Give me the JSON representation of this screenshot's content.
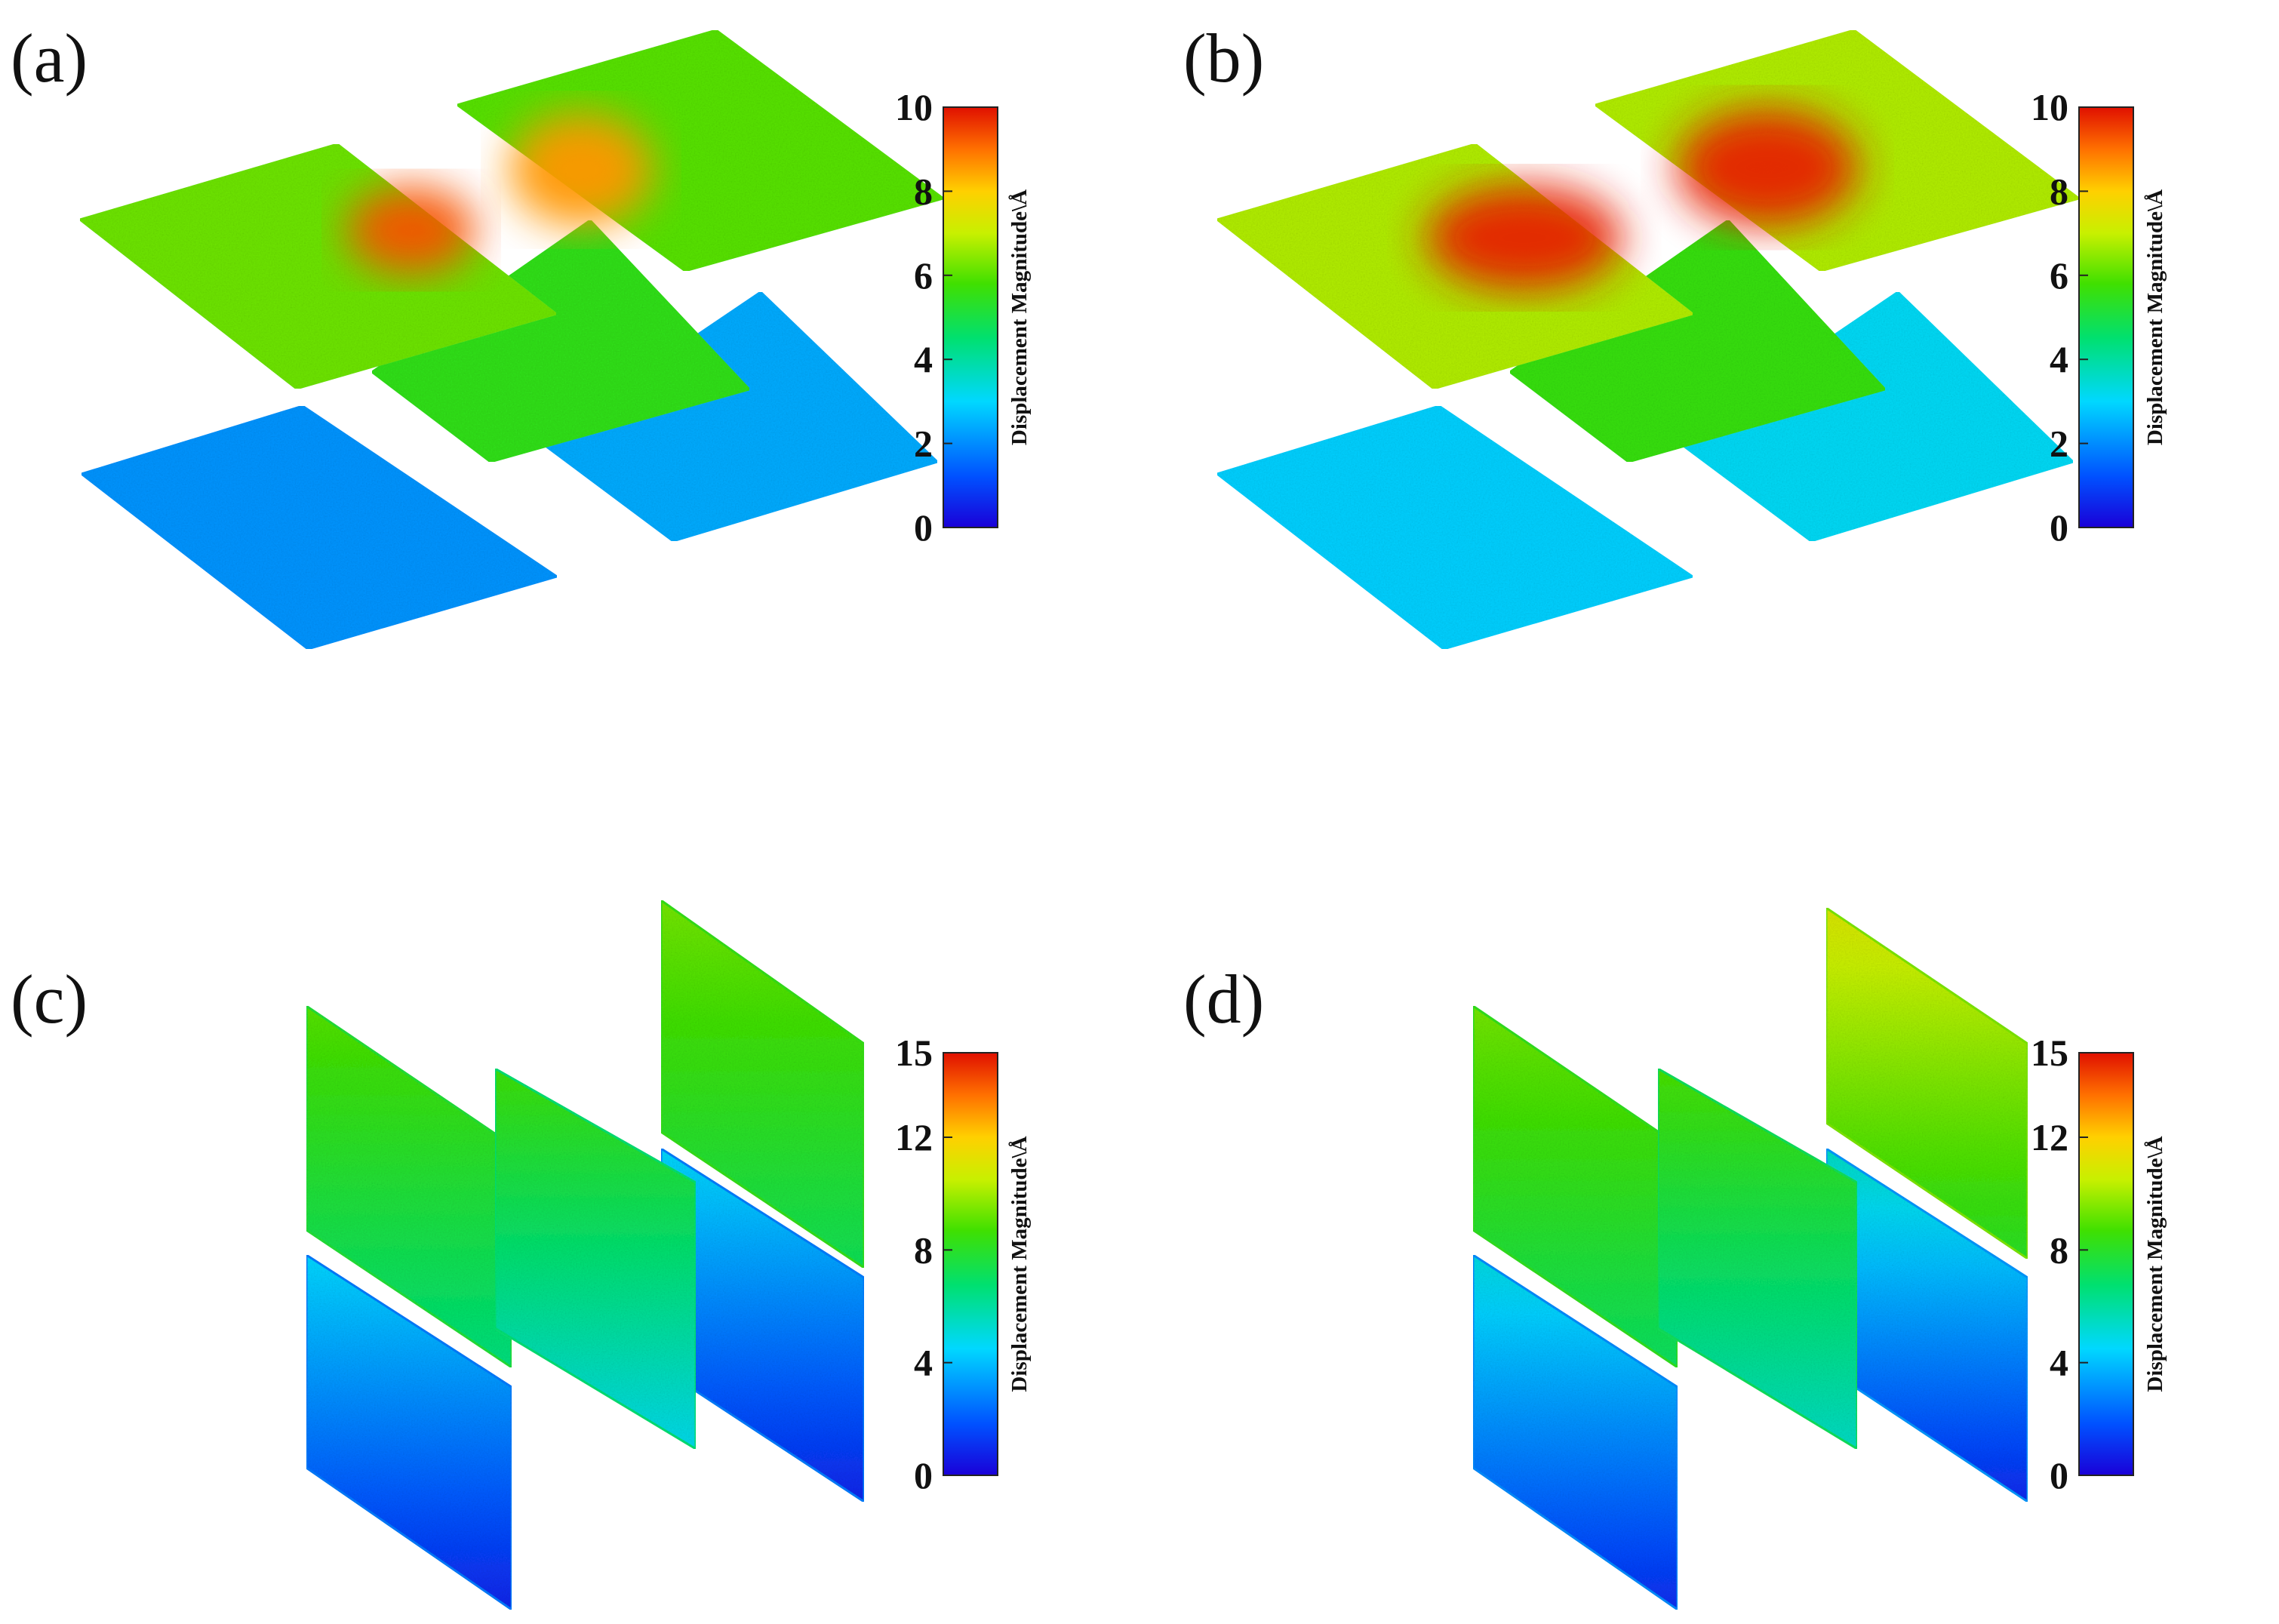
{
  "figure": {
    "panels": [
      {
        "id": "a",
        "label": "(a)",
        "orientation": "horizontal",
        "colorbar": {
          "min": 0,
          "max": 10,
          "ticks": [
            "10",
            "8",
            "6",
            "4",
            "2",
            "0"
          ],
          "label": "Displacement Magnitude\\Å"
        },
        "sheets": [
          {
            "name": "top-left",
            "base_value": 6.2,
            "hot_value": 9.3
          },
          {
            "name": "top-right",
            "base_value": 6.0,
            "hot_value": 8.6
          },
          {
            "name": "center",
            "base_value": 5.5,
            "hot_value": 5.5
          },
          {
            "name": "bottom-left",
            "base_value": 2.1,
            "hot_value": 2.1
          },
          {
            "name": "bottom-right",
            "base_value": 2.4,
            "hot_value": 2.4
          }
        ]
      },
      {
        "id": "b",
        "label": "(b)",
        "orientation": "horizontal",
        "colorbar": {
          "min": 0,
          "max": 10,
          "ticks": [
            "10",
            "8",
            "6",
            "4",
            "2",
            "0"
          ],
          "label": "Displacement Magnitude\\Å"
        },
        "sheets": [
          {
            "name": "top-left",
            "base_value": 6.8,
            "hot_value": 9.8
          },
          {
            "name": "top-right",
            "base_value": 6.8,
            "hot_value": 9.8
          },
          {
            "name": "center",
            "base_value": 5.6,
            "hot_value": 5.6
          },
          {
            "name": "bottom-left",
            "base_value": 2.9,
            "hot_value": 2.9
          },
          {
            "name": "bottom-right",
            "base_value": 3.1,
            "hot_value": 3.1
          }
        ]
      },
      {
        "id": "c",
        "label": "(c)",
        "orientation": "vertical",
        "colorbar": {
          "min": 0,
          "max": 15,
          "ticks": [
            "15",
            "12",
            "8",
            "4",
            "0"
          ],
          "label": "Displacement Magnitude\\Å"
        },
        "sheets": [
          {
            "name": "left-upper",
            "top_value": 9.0,
            "bottom_value": 6.5
          },
          {
            "name": "left-lower",
            "top_value": 4.5,
            "bottom_value": 0.8
          },
          {
            "name": "middle",
            "top_value": 8.6,
            "bottom_value": 4.8
          },
          {
            "name": "right-upper",
            "top_value": 9.4,
            "bottom_value": 7.2
          },
          {
            "name": "right-lower",
            "top_value": 4.6,
            "bottom_value": 0.8
          }
        ]
      },
      {
        "id": "d",
        "label": "(d)",
        "orientation": "vertical",
        "colorbar": {
          "min": 0,
          "max": 15,
          "ticks": [
            "15",
            "12",
            "8",
            "4",
            "0"
          ],
          "label": "Displacement Magnitude\\Å"
        },
        "sheets": [
          {
            "name": "left-upper",
            "top_value": 9.4,
            "bottom_value": 7.0
          },
          {
            "name": "left-lower",
            "top_value": 5.0,
            "bottom_value": 1.0
          },
          {
            "name": "middle",
            "top_value": 8.8,
            "bottom_value": 5.4
          },
          {
            "name": "right-upper",
            "top_value": 11.0,
            "bottom_value": 8.0
          },
          {
            "name": "right-lower",
            "top_value": 5.5,
            "bottom_value": 0.9
          }
        ]
      }
    ]
  }
}
